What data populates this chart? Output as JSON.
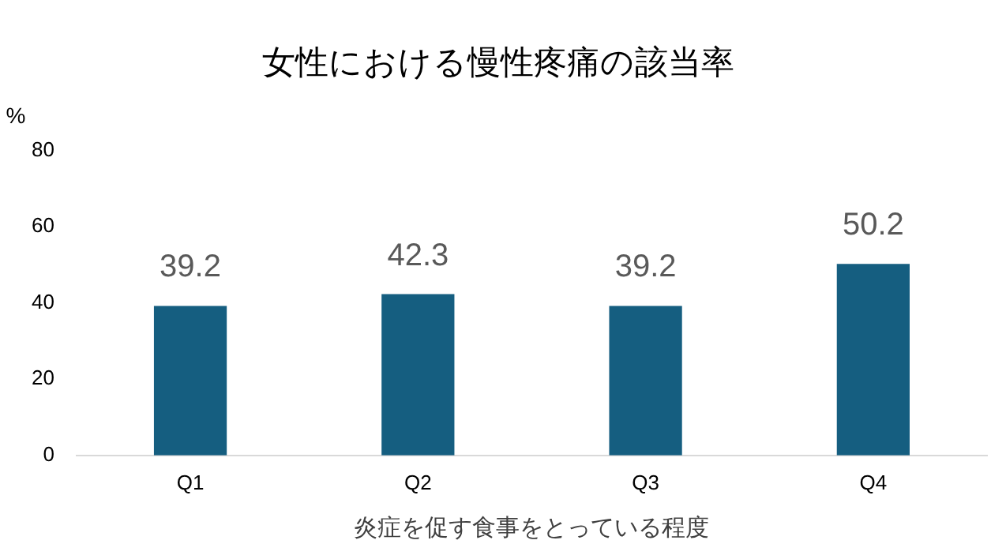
{
  "chart_data": {
    "type": "bar",
    "title": "女性における慢性疼痛の該当率",
    "ylabel": "%",
    "xlabel": "炎症を促す食事をとっている程度",
    "categories": [
      "Q1",
      "Q2",
      "Q3",
      "Q4"
    ],
    "values": [
      39.2,
      42.3,
      39.2,
      50.2
    ],
    "color": "#155e80",
    "ylim": [
      0,
      80
    ],
    "yticks": [
      0,
      20,
      40,
      60,
      80
    ],
    "grid": false,
    "legend": false,
    "data_labels": true
  }
}
